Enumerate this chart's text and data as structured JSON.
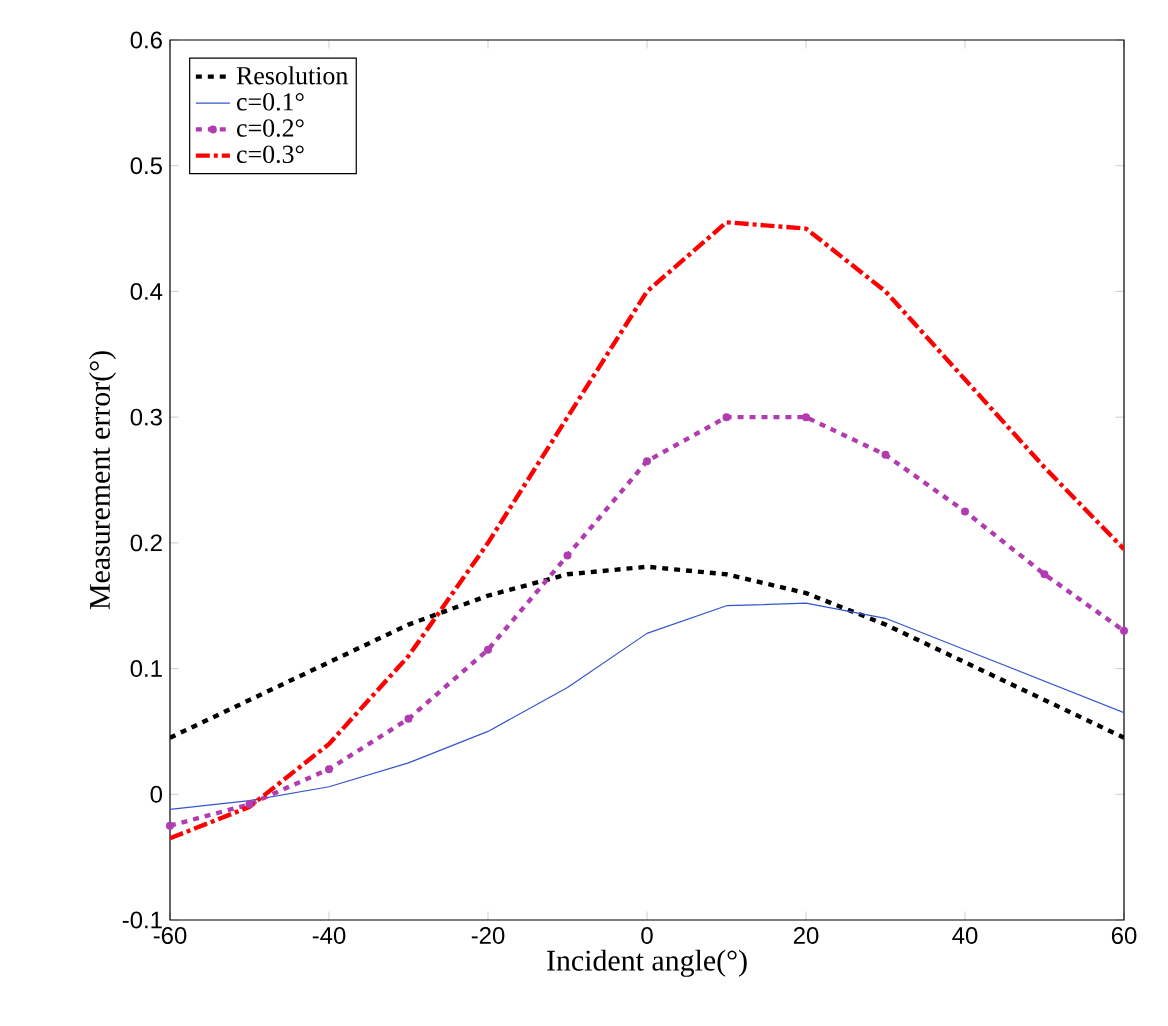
{
  "chart_data": {
    "type": "line",
    "xlabel": "Incident angle(°)",
    "ylabel": "Measurement error(°)",
    "x": [
      -60,
      -50,
      -40,
      -30,
      -20,
      -10,
      0,
      10,
      20,
      30,
      40,
      50,
      60
    ],
    "xlim": [
      -60,
      60
    ],
    "xticks": [
      -60,
      -40,
      -20,
      0,
      20,
      40,
      60
    ],
    "ylim": [
      -0.1,
      0.6
    ],
    "yticks": [
      -0.1,
      0,
      0.1,
      0.2,
      0.3,
      0.4,
      0.5,
      0.6
    ],
    "grid": false,
    "legend": "top left",
    "series": [
      {
        "name": "Resolution",
        "color": "#000000",
        "line_style": "dashed",
        "values": [
          0.045,
          0.075,
          0.105,
          0.135,
          0.158,
          0.175,
          0.181,
          0.175,
          0.16,
          0.135,
          0.105,
          0.075,
          0.045
        ]
      },
      {
        "name": "c=0.1°",
        "color": "#3355cc",
        "line_style": "solid",
        "values": [
          -0.012,
          -0.005,
          0.006,
          0.025,
          0.05,
          0.085,
          0.128,
          0.15,
          0.152,
          0.14,
          0.115,
          0.09,
          0.065
        ]
      },
      {
        "name": "c=0.2°",
        "color": "#b03cb0",
        "line_style": "dashed",
        "marker": "circle",
        "values": [
          -0.025,
          -0.008,
          0.02,
          0.06,
          0.115,
          0.19,
          0.265,
          0.3,
          0.3,
          0.27,
          0.225,
          0.175,
          0.13
        ]
      },
      {
        "name": "c=0.3°",
        "color": "#ff0000",
        "line_style": "dashdot",
        "values": [
          -0.035,
          -0.01,
          0.04,
          0.11,
          0.2,
          0.3,
          0.4,
          0.455,
          0.45,
          0.4,
          0.33,
          0.26,
          0.195
        ]
      }
    ]
  }
}
